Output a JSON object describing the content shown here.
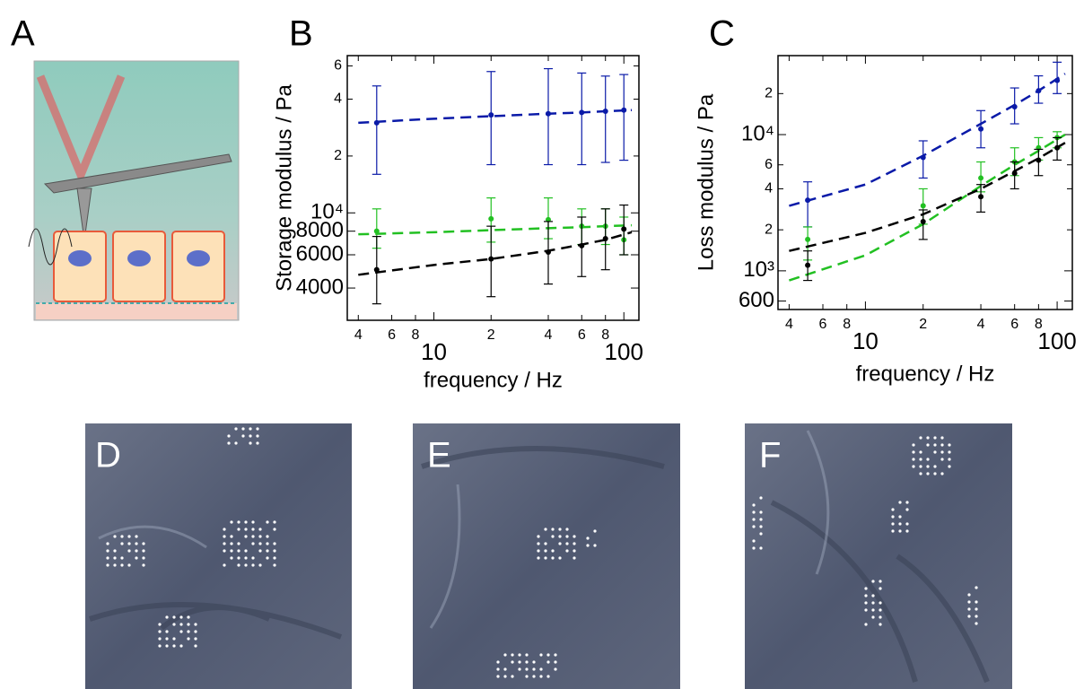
{
  "panel_labels": [
    "A",
    "B",
    "C",
    "D",
    "E",
    "F"
  ],
  "chart_data": [
    {
      "type": "scatter",
      "log_x": true,
      "log_y": true,
      "x_label": "frequency / Hz",
      "y_label": "Storage modulus / Pa",
      "xlim": [
        3.5,
        120
      ],
      "ylim": [
        2700,
        68000
      ],
      "xticks": [
        4,
        6,
        8,
        10,
        {
          "value": 20,
          "label": "2"
        },
        {
          "value": 40,
          "label": "4"
        },
        {
          "value": 60,
          "label": "6"
        },
        {
          "value": 80,
          "label": "8"
        },
        100
      ],
      "yticks": [
        4000,
        6000,
        8000,
        {
          "value": 10000,
          "label": "10⁴"
        },
        {
          "value": 20000,
          "label": "2"
        },
        {
          "value": 40000,
          "label": "4"
        },
        {
          "value": 60000,
          "label": "6"
        }
      ],
      "x": [
        5,
        20,
        40,
        60,
        80,
        100
      ],
      "fit_x": [
        4,
        10,
        20,
        40,
        60,
        80,
        110
      ],
      "series": [
        {
          "color": "#0a1aa8",
          "values": [
            30000,
            33000,
            33500,
            34000,
            34500,
            35000
          ],
          "low": [
            16000,
            18000,
            18000,
            18000,
            18500,
            19000
          ],
          "high": [
            47000,
            56000,
            58000,
            55000,
            53000,
            54000
          ],
          "fit": [
            30000,
            31500,
            32500,
            33500,
            34000,
            34500,
            35000
          ]
        },
        {
          "color": "#22c022",
          "values": [
            8000,
            9300,
            9200,
            8500,
            8500,
            7200
          ],
          "low": [
            6500,
            7000,
            7300,
            6800,
            6800,
            6000
          ],
          "high": [
            10500,
            12000,
            12000,
            10500,
            10500,
            9500
          ],
          "fit": [
            7700,
            7900,
            8100,
            8300,
            8400,
            8500,
            8600
          ]
        },
        {
          "color": "#000000",
          "values": [
            5000,
            5700,
            6200,
            6700,
            7300,
            8200
          ],
          "low": [
            3300,
            3600,
            4200,
            4600,
            5000,
            6000
          ],
          "high": [
            7500,
            8500,
            9000,
            9500,
            10500,
            11000
          ],
          "fit": [
            4700,
            5300,
            5700,
            6300,
            6800,
            7200,
            7900
          ]
        }
      ]
    },
    {
      "type": "scatter",
      "log_x": true,
      "log_y": true,
      "x_label": "frequency / Hz",
      "y_label": "Loss modulus / Pa",
      "xlim": [
        3.5,
        120
      ],
      "ylim": [
        520,
        38000
      ],
      "xticks": [
        4,
        6,
        8,
        10,
        {
          "value": 20,
          "label": "2"
        },
        {
          "value": 40,
          "label": "4"
        },
        {
          "value": 60,
          "label": "6"
        },
        {
          "value": 80,
          "label": "8"
        },
        100
      ],
      "yticks": [
        600,
        {
          "value": 1000,
          "label": "10³"
        },
        {
          "value": 2000,
          "label": "2"
        },
        {
          "value": 4000,
          "label": "4"
        },
        {
          "value": 6000,
          "label": "6"
        },
        {
          "value": 10000,
          "label": "10⁴"
        },
        {
          "value": 20000,
          "label": "2"
        }
      ],
      "x": [
        5,
        20,
        40,
        60,
        80,
        100
      ],
      "fit_x": [
        4,
        10,
        20,
        40,
        60,
        80,
        110
      ],
      "series": [
        {
          "color": "#0a1aa8",
          "values": [
            3300,
            6800,
            11000,
            16000,
            21000,
            25000
          ],
          "low": [
            2100,
            4800,
            8000,
            12000,
            17000,
            20000
          ],
          "high": [
            4500,
            9000,
            15000,
            22000,
            27000,
            34000
          ],
          "fit": [
            3000,
            4300,
            7000,
            12000,
            16500,
            21000,
            28000
          ]
        },
        {
          "color": "#22c022",
          "values": [
            1700,
            3000,
            4800,
            6300,
            8000,
            9500
          ],
          "low": [
            1200,
            2200,
            3800,
            5000,
            6500,
            8000
          ],
          "high": [
            2100,
            4000,
            6300,
            8000,
            9500,
            10500
          ],
          "fit": [
            850,
            1300,
            2200,
            4200,
            6000,
            7600,
            10000
          ]
        },
        {
          "color": "#000000",
          "values": [
            1100,
            2300,
            3500,
            5200,
            6500,
            8000
          ],
          "low": [
            850,
            1700,
            2700,
            4000,
            5000,
            6500
          ],
          "high": [
            1400,
            2800,
            4300,
            6300,
            7800,
            9500
          ],
          "fit": [
            1400,
            1900,
            2600,
            4000,
            5400,
            6700,
            8700
          ]
        }
      ]
    }
  ]
}
